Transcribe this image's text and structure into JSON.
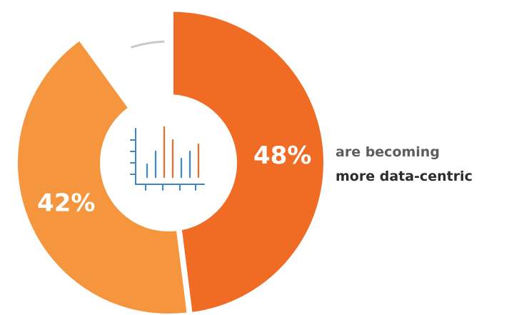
{
  "chart_data": {
    "type": "pie",
    "style": "donut",
    "slices": [
      {
        "value": 48,
        "label": "48%",
        "color": "#f06b24"
      },
      {
        "value": 42,
        "label": "42%",
        "color": "#f5953d"
      },
      {
        "value": 10,
        "label": "",
        "color": "#c8c8c8",
        "style": "outline-arc"
      }
    ],
    "center_icon": "bar-chart-icon"
  },
  "caption": {
    "line1": "are becoming",
    "line2": "more data-centric"
  }
}
